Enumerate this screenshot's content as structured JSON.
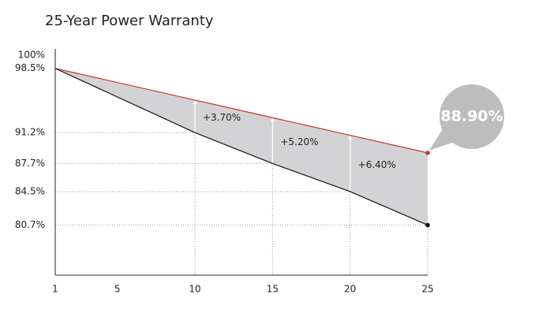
{
  "chart_data": {
    "type": "line",
    "title": "25-Year Power Warranty",
    "x": [
      1,
      10,
      15,
      20,
      25
    ],
    "series": [
      {
        "color": "#c8352b",
        "values": [
          98.5,
          94.9,
          92.9,
          90.9,
          88.9
        ]
      },
      {
        "color": "#111111",
        "values": [
          98.5,
          91.2,
          87.7,
          84.5,
          80.7
        ]
      }
    ],
    "area_color": "#d3d3d5",
    "xlim": [
      1,
      25
    ],
    "xticks": [
      1,
      5,
      10,
      15,
      20,
      25
    ],
    "ylim": [
      75,
      100
    ],
    "yticks": [
      {
        "value": 100,
        "label": "100%"
      },
      {
        "value": 98.5,
        "label": "98.5%"
      },
      {
        "value": 91.2,
        "label": "91.2%"
      },
      {
        "value": 87.7,
        "label": "87.7%"
      },
      {
        "value": 84.5,
        "label": "84.5%"
      },
      {
        "value": 80.7,
        "label": "80.7%"
      }
    ],
    "annotations": [
      {
        "x": 10,
        "text": "+3.70%"
      },
      {
        "x": 15,
        "text": "+5.20%"
      },
      {
        "x": 20,
        "text": "+6.40%"
      }
    ],
    "callout": "88.90%"
  }
}
